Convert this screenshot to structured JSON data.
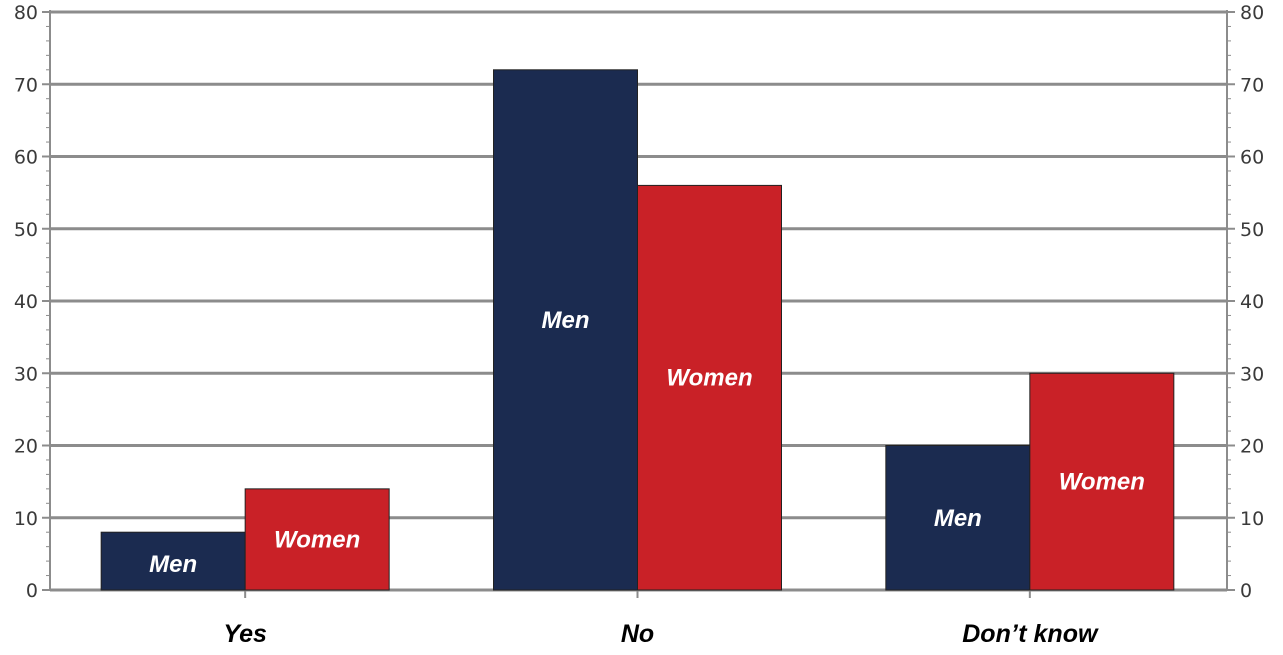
{
  "chart_data": {
    "type": "bar",
    "title": "",
    "xlabel": "",
    "ylabel": "",
    "categories": [
      "Yes",
      "No",
      "Don’t know"
    ],
    "series": [
      {
        "name": "Men",
        "values": [
          8,
          72,
          20
        ],
        "color": "#1b2b50"
      },
      {
        "name": "Women",
        "values": [
          14,
          56,
          30
        ],
        "color": "#c92127"
      }
    ],
    "ylim": [
      0,
      80
    ],
    "yticks": [
      0,
      10,
      20,
      30,
      40,
      50,
      60,
      70,
      80
    ],
    "grid": true,
    "legend": "none (series names labeled inside bars)",
    "colors": {
      "grid": "#8c8c8c",
      "axis": "#8c8c8c"
    }
  }
}
